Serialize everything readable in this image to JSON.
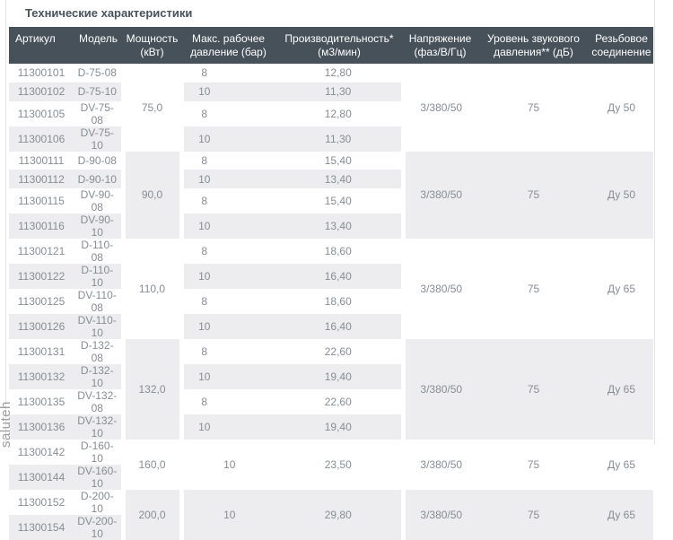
{
  "page": {
    "title": "Технические характеристики",
    "watermark": "saluteh"
  },
  "colors": {
    "header_bg": "#47515a",
    "header_text": "#ffffff",
    "stripe": "#ededef",
    "cell_text": "#868d94",
    "title_text": "#47525c"
  },
  "table": {
    "columns": [
      {
        "id": "art",
        "lines": [
          "Артикул"
        ]
      },
      {
        "id": "model",
        "lines": [
          "Модель"
        ]
      },
      {
        "id": "power",
        "lines": [
          "Мощность",
          "(кВт)"
        ]
      },
      {
        "id": "pressure",
        "lines": [
          "Макс. рабочее",
          "давление (бар)"
        ]
      },
      {
        "id": "capacity",
        "lines": [
          "Производительность*",
          "(м3/мин)"
        ]
      },
      {
        "id": "voltage",
        "lines": [
          "Напряжение",
          "(фаз/В/Гц)"
        ]
      },
      {
        "id": "sound",
        "lines": [
          "Уровень звукового",
          "давления** (дБ)"
        ]
      },
      {
        "id": "connection",
        "lines": [
          "Резьбовое",
          "соединение"
        ]
      }
    ],
    "groups": [
      {
        "power": "75,0",
        "voltage": "3/380/50",
        "sound": "75",
        "connection": "Ду 50",
        "rows": [
          {
            "art": "11300101",
            "model": "D-75-08",
            "pressure": "8",
            "capacity": "12,80"
          },
          {
            "art": "11300102",
            "model": "D-75-10",
            "pressure": "10",
            "capacity": "11,30"
          },
          {
            "art": "11300105",
            "model": "DV-75-08",
            "pressure": "8",
            "capacity": "12,80"
          },
          {
            "art": "11300106",
            "model": "DV-75-10",
            "pressure": "10",
            "capacity": "11,30"
          }
        ]
      },
      {
        "power": "90,0",
        "voltage": "3/380/50",
        "sound": "75",
        "connection": "Ду 50",
        "rows": [
          {
            "art": "11300111",
            "model": "D-90-08",
            "pressure": "8",
            "capacity": "15,40"
          },
          {
            "art": "11300112",
            "model": "D-90-10",
            "pressure": "10",
            "capacity": "13,40"
          },
          {
            "art": "11300115",
            "model": "DV-90-08",
            "pressure": "8",
            "capacity": "15,40"
          },
          {
            "art": "11300116",
            "model": "DV-90-10",
            "pressure": "10",
            "capacity": "13,40"
          }
        ]
      },
      {
        "power": "110,0",
        "voltage": "3/380/50",
        "sound": "75",
        "connection": "Ду 65",
        "rows": [
          {
            "art": "11300121",
            "model": "D-110-08",
            "pressure": "8",
            "capacity": "18,60"
          },
          {
            "art": "11300122",
            "model": "D-110-10",
            "pressure": "10",
            "capacity": "16,40"
          },
          {
            "art": "11300125",
            "model": "DV-110-08",
            "pressure": "8",
            "capacity": "18,60"
          },
          {
            "art": "11300126",
            "model": "DV-110-10",
            "pressure": "10",
            "capacity": "16,40"
          }
        ]
      },
      {
        "power": "132,0",
        "voltage": "3/380/50",
        "sound": "75",
        "connection": "Ду 65",
        "rows": [
          {
            "art": "11300131",
            "model": "D-132-08",
            "pressure": "8",
            "capacity": "22,60"
          },
          {
            "art": "11300132",
            "model": "D-132-10",
            "pressure": "10",
            "capacity": "19,40"
          },
          {
            "art": "11300135",
            "model": "DV-132-08",
            "pressure": "8",
            "capacity": "22,60"
          },
          {
            "art": "11300136",
            "model": "DV-132-10",
            "pressure": "10",
            "capacity": "19,40"
          }
        ]
      },
      {
        "power": "160,0",
        "voltage": "3/380/50",
        "sound": "75",
        "connection": "Ду 65",
        "merged_pressure": "10",
        "merged_capacity": "23,50",
        "rows": [
          {
            "art": "11300142",
            "model": "D-160-10"
          },
          {
            "art": "11300144",
            "model": "DV-160-10"
          }
        ]
      },
      {
        "power": "200,0",
        "voltage": "3/380/50",
        "sound": "75",
        "connection": "Ду 65",
        "merged_pressure": "10",
        "merged_capacity": "29,80",
        "rows": [
          {
            "art": "11300152",
            "model": "D-200-10"
          },
          {
            "art": "11300154",
            "model": "DV-200-10"
          }
        ]
      }
    ]
  }
}
